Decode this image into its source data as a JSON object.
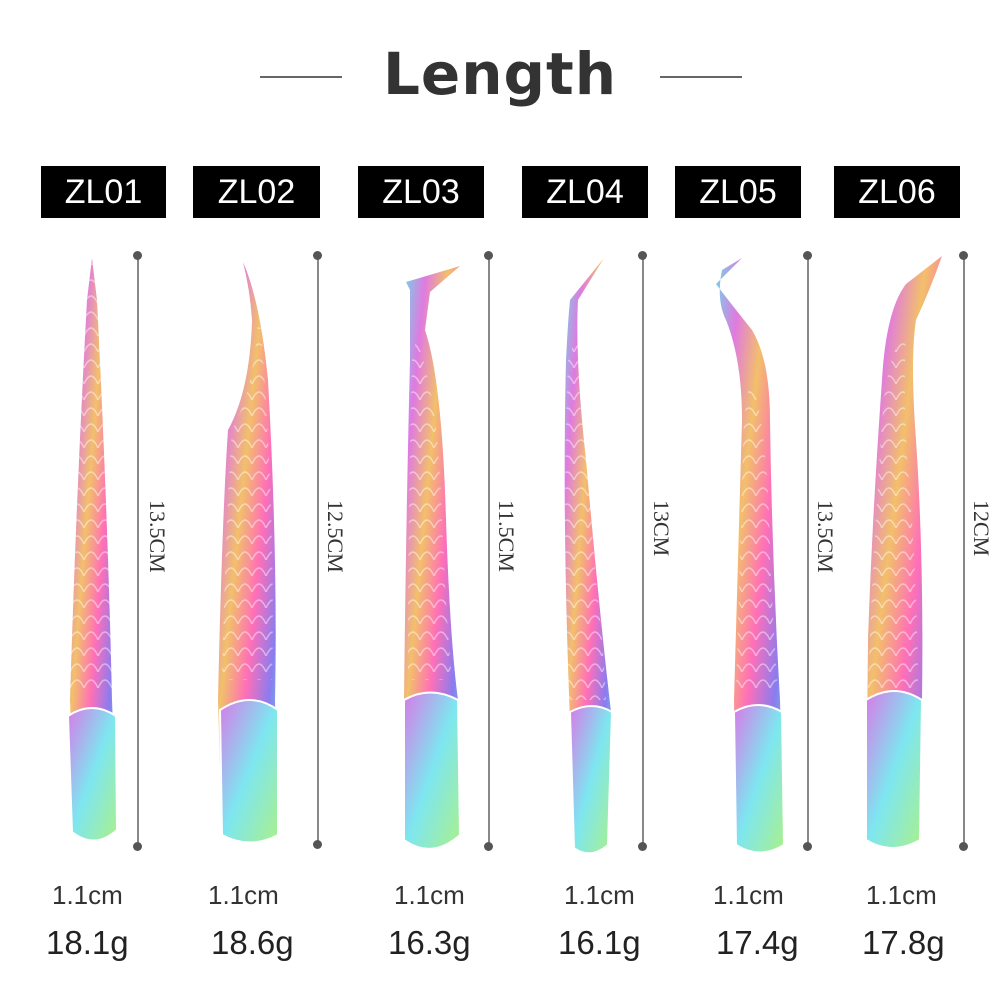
{
  "title": "Length",
  "colors": {
    "label_bg": "#000000",
    "label_text": "#ffffff",
    "line": "#666666"
  },
  "products": [
    {
      "model": "ZL01",
      "length": "13.5CM",
      "width": "1.1cm",
      "weight": "18.1g",
      "tip": "straight"
    },
    {
      "model": "ZL02",
      "length": "12.5CM",
      "width": "1.1cm",
      "weight": "18.6g",
      "tip": "curved"
    },
    {
      "model": "ZL03",
      "length": "11.5CM",
      "width": "1.1cm",
      "weight": "16.3g",
      "tip": "L-shaped"
    },
    {
      "model": "ZL04",
      "length": "13CM",
      "width": "1.1cm",
      "weight": "16.1g",
      "tip": "angled"
    },
    {
      "model": "ZL05",
      "length": "13.5CM",
      "width": "1.1cm",
      "weight": "17.4g",
      "tip": "hooked"
    },
    {
      "model": "ZL06",
      "length": "12CM",
      "width": "1.1cm",
      "weight": "17.8g",
      "tip": "angled"
    }
  ]
}
